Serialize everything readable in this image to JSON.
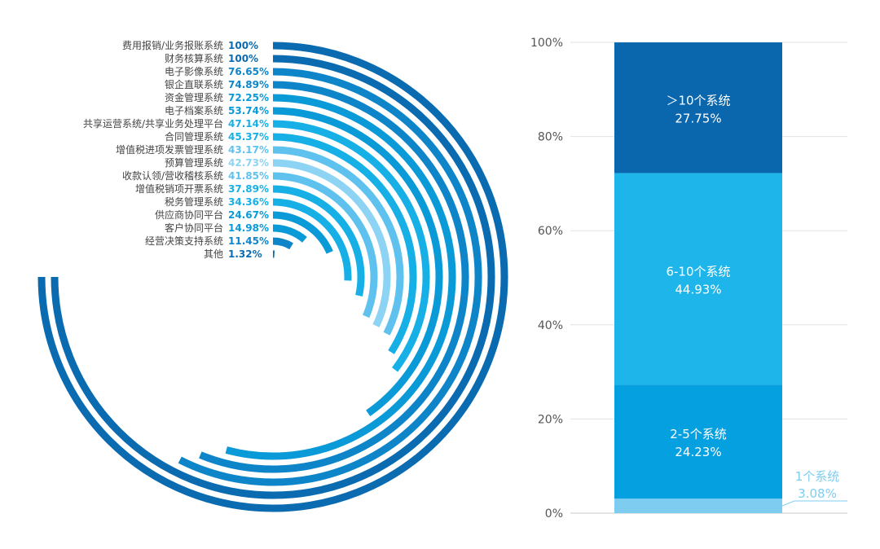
{
  "chart_data": [
    {
      "type": "radial-bar",
      "categories": [
        "费用报销/业务报账系统",
        "财务核算系统",
        "电子影像系统",
        "银企直联系统",
        "资金管理系统",
        "电子档案系统",
        "共享运营系统/共享业务处理平台",
        "合同管理系统",
        "增值税进项发票管理系统",
        "预算管理系统",
        "收款认领/营收稽核系统",
        "增值税销项开票系统",
        "税务管理系统",
        "供应商协同平台",
        "客户协同平台",
        "经营决策支持系统",
        "其他"
      ],
      "values": [
        100,
        100,
        76.65,
        74.89,
        72.25,
        53.74,
        47.14,
        45.37,
        43.17,
        42.73,
        41.85,
        37.89,
        34.36,
        24.67,
        14.98,
        11.45,
        1.32
      ],
      "value_labels": [
        "100%",
        "100%",
        "76.65%",
        "74.89%",
        "72.25%",
        "53.74%",
        "47.14%",
        "45.37%",
        "43.17%",
        "42.73%",
        "41.85%",
        "37.89%",
        "34.36%",
        "24.67%",
        "14.98%",
        "11.45%",
        "1.32%"
      ],
      "colors": [
        "#0a6bb1",
        "#0a6bb1",
        "#0e85c9",
        "#0e85c9",
        "#0a9ad8",
        "#0a9ad8",
        "#17b0e6",
        "#17b0e6",
        "#5fc2ee",
        "#8dd3f3",
        "#5fc2ee",
        "#17b0e6",
        "#17b0e6",
        "#0a9ad8",
        "#0a9ad8",
        "#0e85c9",
        "#0a6bb1"
      ],
      "max": 100
    },
    {
      "type": "bar",
      "stacked": true,
      "yticks": [
        "0%",
        "20%",
        "40%",
        "60%",
        "80%",
        "100%"
      ],
      "ylim": [
        0,
        100
      ],
      "series": [
        {
          "name": "1个系统",
          "value": 3.08,
          "label": "3.08%",
          "color": "#7ecdf0"
        },
        {
          "name": "2-5个系统",
          "value": 24.23,
          "label": "24.23%",
          "color": "#05a0e0"
        },
        {
          "name": "6-10个系统",
          "value": 44.93,
          "label": "44.93%",
          "color": "#1eb6ea"
        },
        {
          "name": "＞10个系统",
          "value": 27.75,
          "label": "27.75%",
          "color": "#0a66ad"
        }
      ]
    }
  ]
}
